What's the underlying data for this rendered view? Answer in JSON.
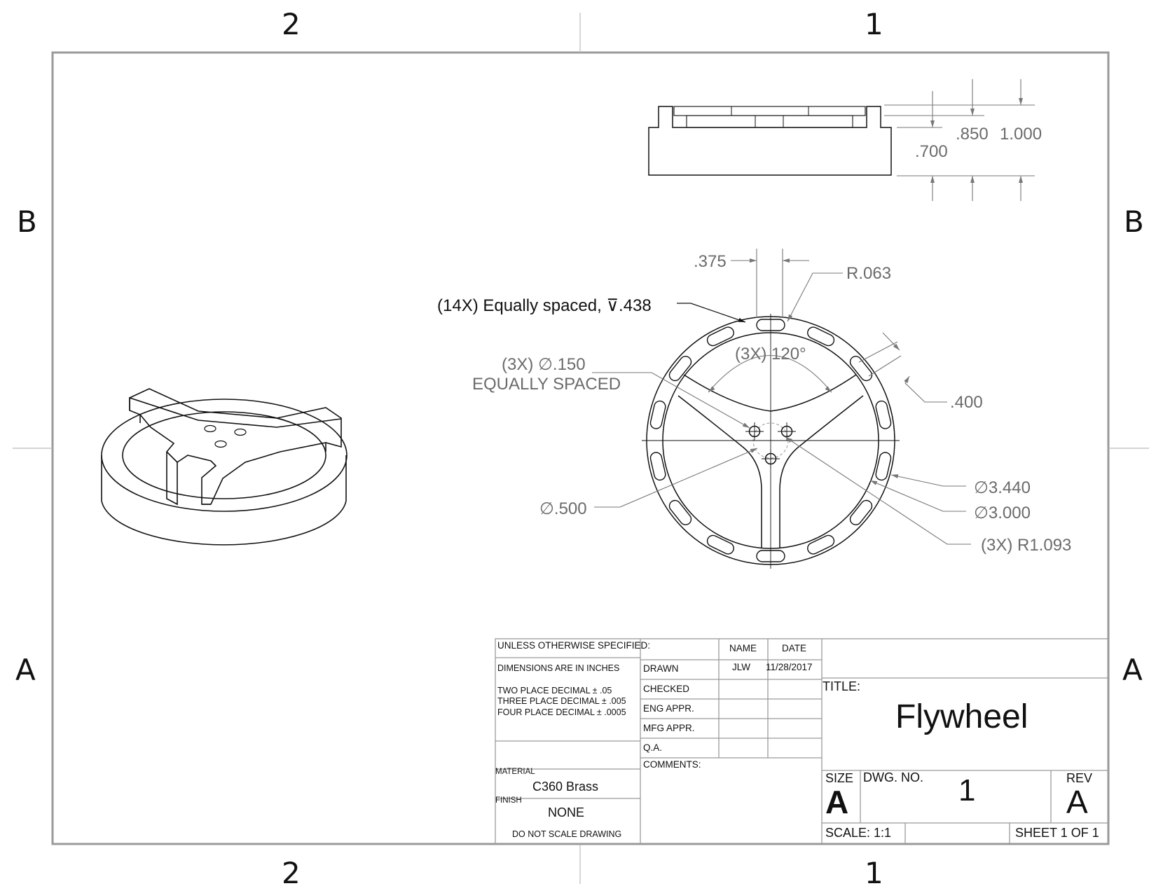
{
  "zones": {
    "top": [
      "2",
      "1"
    ],
    "bottom": [
      "2",
      "1"
    ],
    "left": [
      "B",
      "A"
    ],
    "right": [
      "B",
      "A"
    ]
  },
  "dimensions": {
    "side_view": {
      "d1": ".700",
      "d2": ".850",
      "d3": "1.000"
    },
    "top_view": {
      "slot_width": ".375",
      "slot_radius": "R.063",
      "slots_note": "(14X) Equally spaced, ⊽.438",
      "holes_line1": "(3X) ∅.150",
      "holes_line2": "EQUALLY SPACED",
      "angle": "(3X) 120°",
      "rim_width": ".400",
      "hub_dia": "∅.500",
      "outer_dia": "∅3.440",
      "inner_dia": "∅3.000",
      "spoke_radius": "(3X) R1.093"
    }
  },
  "title_block": {
    "unless_specified": "UNLESS OTHERWISE SPECIFIED:",
    "dims_in_inches": "DIMENSIONS ARE IN INCHES",
    "tol1": "TWO PLACE DECIMAL  ±  .05",
    "tol2": "THREE PLACE DECIMAL   ±  .005",
    "tol3": "FOUR PLACE DECIMAL  ±  .0005",
    "material_label": "MATERIAL",
    "material_value": "C360 Brass",
    "finish_label": "FINISH",
    "finish_value": "NONE",
    "do_not_scale": "DO NOT SCALE DRAWING",
    "name_header": "NAME",
    "date_header": "DATE",
    "rows": [
      "DRAWN",
      "CHECKED",
      "ENG APPR.",
      "MFG APPR.",
      "Q.A."
    ],
    "drawn_name": "JLW",
    "drawn_date": "11/28/2017",
    "comments_label": "COMMENTS:",
    "title_label": "TITLE:",
    "title_value": "Flywheel",
    "size_label": "SIZE",
    "size_value": "A",
    "dwg_no_label": "DWG.  NO.",
    "dwg_no_value": "1",
    "rev_label": "REV",
    "rev_value": "A",
    "scale": "SCALE: 1:1",
    "sheet": "SHEET 1 OF 1"
  }
}
